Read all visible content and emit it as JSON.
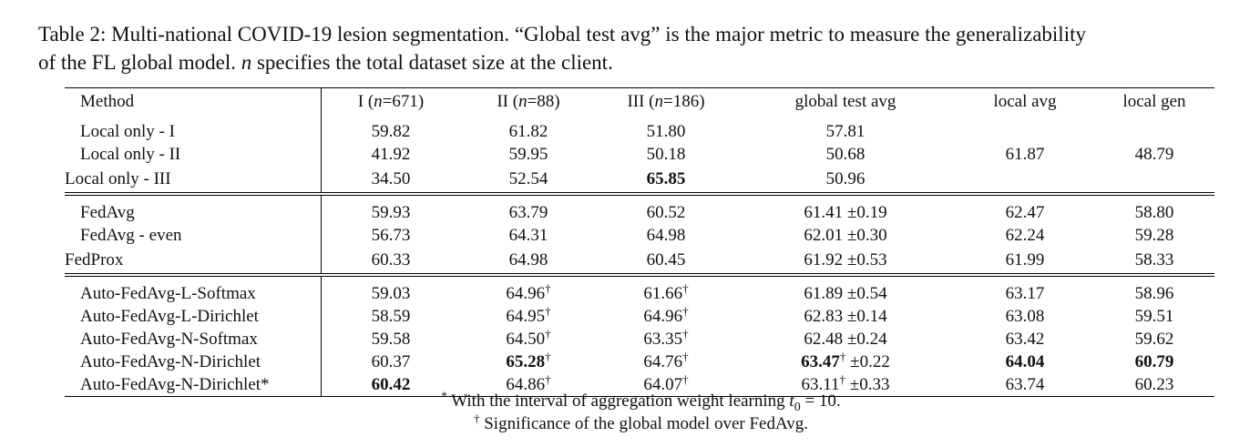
{
  "caption": {
    "line1": "Table 2: Multi-national COVID-19 lesion segmentation. “Global test avg” is the major metric to measure the generalizability",
    "line2_pre": "of the FL global model. ",
    "line2_var": "n",
    "line2_post": " specifies the total dataset size at the client."
  },
  "headers": {
    "method": "Method",
    "c1_pre": "I (",
    "c1_var": "n",
    "c1_post": "=671)",
    "c2_pre": "II (",
    "c2_var": "n",
    "c2_post": "=88)",
    "c3_pre": "III (",
    "c3_var": "n",
    "c3_post": "=186)",
    "global": "global test avg",
    "local_avg": "local avg",
    "local_gen": "local gen"
  },
  "group1": {
    "r1": {
      "method": "Local only - I",
      "v1": "59.82",
      "v2": "61.82",
      "v3": "51.80",
      "g": "57.81"
    },
    "r2": {
      "method": "Local only - II",
      "v1": "41.92",
      "v2": "59.95",
      "v3": "50.18",
      "g": "50.68",
      "la": "61.87",
      "lg": "48.79"
    },
    "r3": {
      "method": "Local only - III",
      "v1": "34.50",
      "v2": "52.54",
      "v3": "65.85",
      "g": "50.96"
    }
  },
  "group2": {
    "r1": {
      "method": "FedAvg",
      "v1": "59.93",
      "v2": "63.79",
      "v3": "60.52",
      "g": "61.41 ±0.19",
      "la": "62.47",
      "lg": "58.80"
    },
    "r2": {
      "method": "FedAvg - even",
      "v1": "56.73",
      "v2": "64.31",
      "v3": "64.98",
      "g": "62.01 ±0.30",
      "la": "62.24",
      "lg": "59.28"
    },
    "r3": {
      "method": "FedProx",
      "v1": "60.33",
      "v2": "64.98",
      "v3": "60.45",
      "g": "61.92 ±0.53",
      "la": "61.99",
      "lg": "58.33"
    }
  },
  "group3": {
    "r1": {
      "method": "Auto-FedAvg-L-Softmax",
      "v1": "59.03",
      "v2": "64.96",
      "v3": "61.66",
      "g": "61.89 ±0.54",
      "la": "63.17",
      "lg": "58.96"
    },
    "r2": {
      "method": "Auto-FedAvg-L-Dirichlet",
      "v1": "58.59",
      "v2": "64.95",
      "v3": "64.96",
      "g": "62.83 ±0.14",
      "la": "63.08",
      "lg": "59.51"
    },
    "r3": {
      "method": "Auto-FedAvg-N-Softmax",
      "v1": "59.58",
      "v2": "64.50",
      "v3": "63.35",
      "g": "62.48 ±0.24",
      "la": "63.42",
      "lg": "59.62"
    },
    "r4": {
      "method": "Auto-FedAvg-N-Dirichlet",
      "v1": "60.37",
      "v2": "65.28",
      "v3": "64.76",
      "g_val": "63.47",
      "g_sd": " ±0.22",
      "la": "64.04",
      "lg": "60.79"
    },
    "r5": {
      "method": "Auto-FedAvg-N-Dirichlet*",
      "v1": "60.42",
      "v2": "64.86",
      "v3": "64.07",
      "g_val": "63.11",
      "g_sd": " ±0.33",
      "la": "63.74",
      "lg": "60.23"
    }
  },
  "dagger": "†",
  "star": "*",
  "footnotes": {
    "f1_text": " With the interval of aggregation weight learning ",
    "f1_math": "t",
    "f1_sub": "0",
    "f1_eq": " = 10.",
    "f2_text": " Significance of the global model over FedAvg."
  }
}
